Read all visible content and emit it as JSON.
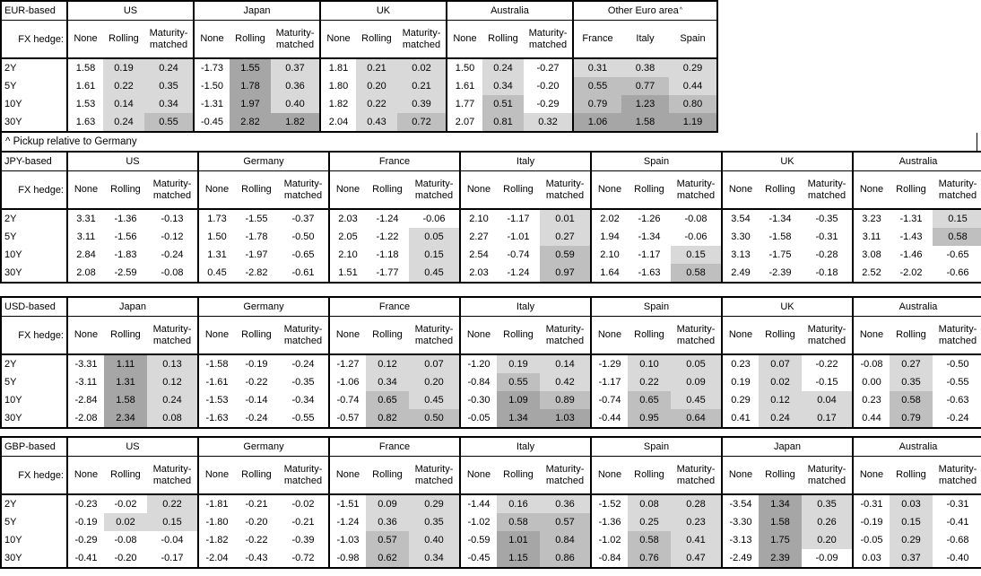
{
  "footnote": "^ Pickup relative to Germany",
  "labels": {
    "fx_hedge": "FX hedge:",
    "tenors": [
      "2Y",
      "5Y",
      "10Y",
      "30Y"
    ],
    "hedge_columns": [
      "None",
      "Rolling",
      "Maturity-matched"
    ]
  },
  "heatmap": {
    "colors": {
      "none": "#ffffff",
      "light": "#d9d9d9",
      "medium": "#bfbfbf",
      "dark": "#a6a6a6"
    },
    "thresholds": {
      "light_min": 0,
      "medium_min": 0.5,
      "dark_min": 1.0
    }
  },
  "chart_data": [
    {
      "type": "table",
      "title": "EUR-based",
      "row_labels": [
        "2Y",
        "5Y",
        "10Y",
        "30Y"
      ],
      "groups": [
        {
          "name": "US",
          "columns": [
            "None",
            "Rolling",
            "Maturity-matched"
          ],
          "shaded_columns": [
            1,
            2
          ],
          "rows": [
            [
              1.58,
              0.19,
              0.24
            ],
            [
              1.61,
              0.22,
              0.35
            ],
            [
              1.53,
              0.14,
              0.34
            ],
            [
              1.63,
              0.24,
              0.55
            ]
          ]
        },
        {
          "name": "Japan",
          "columns": [
            "None",
            "Rolling",
            "Maturity-matched"
          ],
          "shaded_columns": [
            1,
            2
          ],
          "rows": [
            [
              -1.73,
              1.55,
              0.37
            ],
            [
              -1.5,
              1.78,
              0.36
            ],
            [
              -1.31,
              1.97,
              0.4
            ],
            [
              -0.45,
              2.82,
              1.82
            ]
          ]
        },
        {
          "name": "UK",
          "columns": [
            "None",
            "Rolling",
            "Maturity-matched"
          ],
          "shaded_columns": [
            1,
            2
          ],
          "rows": [
            [
              1.81,
              0.21,
              0.02
            ],
            [
              1.8,
              0.2,
              0.21
            ],
            [
              1.82,
              0.22,
              0.39
            ],
            [
              2.04,
              0.43,
              0.72
            ]
          ]
        },
        {
          "name": "Australia",
          "columns": [
            "None",
            "Rolling",
            "Maturity-matched"
          ],
          "shaded_columns": [
            1,
            2
          ],
          "rows": [
            [
              1.5,
              0.24,
              -0.27
            ],
            [
              1.61,
              0.34,
              -0.2
            ],
            [
              1.77,
              0.51,
              -0.29
            ],
            [
              2.07,
              0.81,
              0.32
            ]
          ]
        },
        {
          "name": "Other Euro area",
          "sup": "^",
          "columns": [
            "France",
            "Italy",
            "Spain"
          ],
          "shaded_columns": [
            0,
            1,
            2
          ],
          "rows": [
            [
              0.31,
              0.38,
              0.29
            ],
            [
              0.55,
              0.77,
              0.44
            ],
            [
              0.79,
              1.23,
              0.8
            ],
            [
              1.06,
              1.58,
              1.19
            ]
          ]
        }
      ]
    },
    {
      "type": "table",
      "title": "JPY-based",
      "row_labels": [
        "2Y",
        "5Y",
        "10Y",
        "30Y"
      ],
      "groups": [
        {
          "name": "US",
          "columns": [
            "None",
            "Rolling",
            "Maturity-matched"
          ],
          "shaded_columns": [
            1,
            2
          ],
          "rows": [
            [
              3.31,
              -1.36,
              -0.13
            ],
            [
              3.11,
              -1.56,
              -0.12
            ],
            [
              2.84,
              -1.83,
              -0.24
            ],
            [
              2.08,
              -2.59,
              -0.08
            ]
          ]
        },
        {
          "name": "Germany",
          "columns": [
            "None",
            "Rolling",
            "Maturity-matched"
          ],
          "shaded_columns": [
            1,
            2
          ],
          "rows": [
            [
              1.73,
              -1.55,
              -0.37
            ],
            [
              1.5,
              -1.78,
              -0.5
            ],
            [
              1.31,
              -1.97,
              -0.65
            ],
            [
              0.45,
              -2.82,
              -0.61
            ]
          ]
        },
        {
          "name": "France",
          "columns": [
            "None",
            "Rolling",
            "Maturity-matched"
          ],
          "shaded_columns": [
            1,
            2
          ],
          "rows": [
            [
              2.03,
              -1.24,
              -0.06
            ],
            [
              2.05,
              -1.22,
              0.05
            ],
            [
              2.1,
              -1.18,
              0.15
            ],
            [
              1.51,
              -1.77,
              0.45
            ]
          ]
        },
        {
          "name": "Italy",
          "columns": [
            "None",
            "Rolling",
            "Maturity-matched"
          ],
          "shaded_columns": [
            1,
            2
          ],
          "rows": [
            [
              2.1,
              -1.17,
              0.01
            ],
            [
              2.27,
              -1.01,
              0.27
            ],
            [
              2.54,
              -0.74,
              0.59
            ],
            [
              2.03,
              -1.24,
              0.97
            ]
          ]
        },
        {
          "name": "Spain",
          "columns": [
            "None",
            "Rolling",
            "Maturity-matched"
          ],
          "shaded_columns": [
            1,
            2
          ],
          "rows": [
            [
              2.02,
              -1.26,
              -0.08
            ],
            [
              1.94,
              -1.34,
              -0.06
            ],
            [
              2.1,
              -1.17,
              0.15
            ],
            [
              1.64,
              -1.63,
              0.58
            ]
          ]
        },
        {
          "name": "UK",
          "columns": [
            "None",
            "Rolling",
            "Maturity-matched"
          ],
          "shaded_columns": [
            1,
            2
          ],
          "rows": [
            [
              3.54,
              -1.34,
              -0.35
            ],
            [
              3.3,
              -1.58,
              -0.31
            ],
            [
              3.13,
              -1.75,
              -0.28
            ],
            [
              2.49,
              -2.39,
              -0.18
            ]
          ]
        },
        {
          "name": "Australia",
          "columns": [
            "None",
            "Rolling",
            "Maturity-matched"
          ],
          "shaded_columns": [
            1,
            2
          ],
          "rows": [
            [
              3.23,
              -1.31,
              0.15
            ],
            [
              3.11,
              -1.43,
              0.58
            ],
            [
              3.08,
              -1.46,
              -0.65
            ],
            [
              2.52,
              -2.02,
              -0.66
            ]
          ]
        }
      ]
    },
    {
      "type": "table",
      "title": "USD-based",
      "row_labels": [
        "2Y",
        "5Y",
        "10Y",
        "30Y"
      ],
      "groups": [
        {
          "name": "Japan",
          "columns": [
            "None",
            "Rolling",
            "Maturity-matched"
          ],
          "shaded_columns": [
            1,
            2
          ],
          "rows": [
            [
              -3.31,
              1.11,
              0.13
            ],
            [
              -3.11,
              1.31,
              0.12
            ],
            [
              -2.84,
              1.58,
              0.24
            ],
            [
              -2.08,
              2.34,
              0.08
            ]
          ]
        },
        {
          "name": "Germany",
          "columns": [
            "None",
            "Rolling",
            "Maturity-matched"
          ],
          "shaded_columns": [
            1,
            2
          ],
          "rows": [
            [
              -1.58,
              -0.19,
              -0.24
            ],
            [
              -1.61,
              -0.22,
              -0.35
            ],
            [
              -1.53,
              -0.14,
              -0.34
            ],
            [
              -1.63,
              -0.24,
              -0.55
            ]
          ]
        },
        {
          "name": "France",
          "columns": [
            "None",
            "Rolling",
            "Maturity-matched"
          ],
          "shaded_columns": [
            1,
            2
          ],
          "rows": [
            [
              -1.27,
              0.12,
              0.07
            ],
            [
              -1.06,
              0.34,
              0.2
            ],
            [
              -0.74,
              0.65,
              0.45
            ],
            [
              -0.57,
              0.82,
              0.5
            ]
          ]
        },
        {
          "name": "Italy",
          "columns": [
            "None",
            "Rolling",
            "Maturity-matched"
          ],
          "shaded_columns": [
            1,
            2
          ],
          "rows": [
            [
              -1.2,
              0.19,
              0.14
            ],
            [
              -0.84,
              0.55,
              0.42
            ],
            [
              -0.3,
              1.09,
              0.89
            ],
            [
              -0.05,
              1.34,
              1.03
            ]
          ]
        },
        {
          "name": "Spain",
          "columns": [
            "None",
            "Rolling",
            "Maturity-matched"
          ],
          "shaded_columns": [
            1,
            2
          ],
          "rows": [
            [
              -1.29,
              0.1,
              0.05
            ],
            [
              -1.17,
              0.22,
              0.09
            ],
            [
              -0.74,
              0.65,
              0.45
            ],
            [
              -0.44,
              0.95,
              0.64
            ]
          ]
        },
        {
          "name": "UK",
          "columns": [
            "None",
            "Rolling",
            "Maturity-matched"
          ],
          "shaded_columns": [
            1,
            2
          ],
          "rows": [
            [
              0.23,
              0.07,
              -0.22
            ],
            [
              0.19,
              0.02,
              -0.15
            ],
            [
              0.29,
              0.12,
              0.04
            ],
            [
              0.41,
              0.24,
              0.17
            ]
          ]
        },
        {
          "name": "Australia",
          "columns": [
            "None",
            "Rolling",
            "Maturity-matched"
          ],
          "shaded_columns": [
            1,
            2
          ],
          "rows": [
            [
              -0.08,
              0.27,
              -0.5
            ],
            [
              0.0,
              0.35,
              -0.55
            ],
            [
              0.23,
              0.58,
              -0.63
            ],
            [
              0.44,
              0.79,
              -0.24
            ]
          ]
        }
      ]
    },
    {
      "type": "table",
      "title": "GBP-based",
      "row_labels": [
        "2Y",
        "5Y",
        "10Y",
        "30Y"
      ],
      "groups": [
        {
          "name": "US",
          "columns": [
            "None",
            "Rolling",
            "Maturity-matched"
          ],
          "shaded_columns": [
            1,
            2
          ],
          "rows": [
            [
              -0.23,
              -0.02,
              0.22
            ],
            [
              -0.19,
              0.02,
              0.15
            ],
            [
              -0.29,
              -0.08,
              -0.04
            ],
            [
              -0.41,
              -0.2,
              -0.17
            ]
          ]
        },
        {
          "name": "Germany",
          "columns": [
            "None",
            "Rolling",
            "Maturity-matched"
          ],
          "shaded_columns": [
            1,
            2
          ],
          "rows": [
            [
              -1.81,
              -0.21,
              -0.02
            ],
            [
              -1.8,
              -0.2,
              -0.21
            ],
            [
              -1.82,
              -0.22,
              -0.39
            ],
            [
              -2.04,
              -0.43,
              -0.72
            ]
          ]
        },
        {
          "name": "France",
          "columns": [
            "None",
            "Rolling",
            "Maturity-matched"
          ],
          "shaded_columns": [
            1,
            2
          ],
          "rows": [
            [
              -1.51,
              0.09,
              0.29
            ],
            [
              -1.24,
              0.36,
              0.35
            ],
            [
              -1.03,
              0.57,
              0.4
            ],
            [
              -0.98,
              0.62,
              0.34
            ]
          ]
        },
        {
          "name": "Italy",
          "columns": [
            "None",
            "Rolling",
            "Maturity-matched"
          ],
          "shaded_columns": [
            1,
            2
          ],
          "rows": [
            [
              -1.44,
              0.16,
              0.36
            ],
            [
              -1.02,
              0.58,
              0.57
            ],
            [
              -0.59,
              1.01,
              0.84
            ],
            [
              -0.45,
              1.15,
              0.86
            ]
          ]
        },
        {
          "name": "Spain",
          "columns": [
            "None",
            "Rolling",
            "Maturity-matched"
          ],
          "shaded_columns": [
            1,
            2
          ],
          "rows": [
            [
              -1.52,
              0.08,
              0.28
            ],
            [
              -1.36,
              0.25,
              0.23
            ],
            [
              -1.02,
              0.58,
              0.41
            ],
            [
              -0.84,
              0.76,
              0.47
            ]
          ]
        },
        {
          "name": "Japan",
          "columns": [
            "None",
            "Rolling",
            "Maturity-matched"
          ],
          "shaded_columns": [
            1,
            2
          ],
          "rows": [
            [
              -3.54,
              1.34,
              0.35
            ],
            [
              -3.3,
              1.58,
              0.26
            ],
            [
              -3.13,
              1.75,
              0.2
            ],
            [
              -2.49,
              2.39,
              -0.09
            ]
          ]
        },
        {
          "name": "Australia",
          "columns": [
            "None",
            "Rolling",
            "Maturity-matched"
          ],
          "shaded_columns": [
            1,
            2
          ],
          "rows": [
            [
              -0.31,
              0.03,
              -0.31
            ],
            [
              -0.19,
              0.15,
              -0.41
            ],
            [
              -0.05,
              0.29,
              -0.68
            ],
            [
              0.03,
              0.37,
              -0.4
            ]
          ]
        }
      ]
    }
  ]
}
